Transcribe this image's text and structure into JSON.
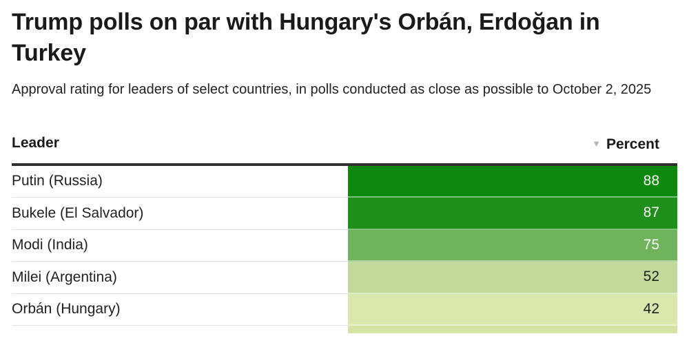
{
  "header": {
    "title": "Trump polls on par with Hungary's Orbán, Erdoğan in Turkey",
    "subtitle": "Approval rating for leaders of select countries, in polls conducted as close as possible to October 2, 2025"
  },
  "table": {
    "columns": [
      {
        "label": "Leader",
        "align": "left"
      },
      {
        "label": "Percent",
        "align": "right",
        "sorted": "descending",
        "sort_arrow_icon": "triangle-down",
        "sort_arrow_color": "#b5b5b5"
      }
    ],
    "rows": [
      {
        "leader": "Putin (Russia)",
        "percent": "88",
        "cell_color": "#0d8a0e",
        "text_color": "#ffffff",
        "partial": false
      },
      {
        "leader": "Bukele (El Salvador)",
        "percent": "87",
        "cell_color": "#1e8f18",
        "text_color": "#ffffff",
        "partial": false
      },
      {
        "leader": "Modi (India)",
        "percent": "75",
        "cell_color": "#6fb35a",
        "text_color": "#ffffff",
        "partial": false
      },
      {
        "leader": "Milei (Argentina)",
        "percent": "52",
        "cell_color": "#c1da9b",
        "text_color": "#1f1f1f",
        "partial": false
      },
      {
        "leader": "Orbán (Hungary)",
        "percent": "42",
        "cell_color": "#d9e8ad",
        "text_color": "#1f1f1f",
        "partial": false
      },
      {
        "leader": "",
        "percent": "",
        "cell_color": "#d3e4a4",
        "text_color": "#1f1f1f",
        "partial": true
      }
    ]
  },
  "chart_data": {
    "type": "table",
    "title": "Trump polls on par with Hungary's Orbán, Erdoğan in Turkey",
    "subtitle": "Approval rating for leaders of select countries, in polls conducted as close as possible to October 2, 2025",
    "columns": [
      "Leader",
      "Percent"
    ],
    "rows": [
      [
        "Putin (Russia)",
        88
      ],
      [
        "Bukele (El Salvador)",
        87
      ],
      [
        "Modi (India)",
        75
      ],
      [
        "Milei (Argentina)",
        52
      ],
      [
        "Orbán (Hungary)",
        42
      ]
    ],
    "sort": {
      "column": "Percent",
      "direction": "desc"
    },
    "cell_fill": "green sequential heatmap scaled to Percent value",
    "value_range_shown": [
      42,
      88
    ]
  }
}
